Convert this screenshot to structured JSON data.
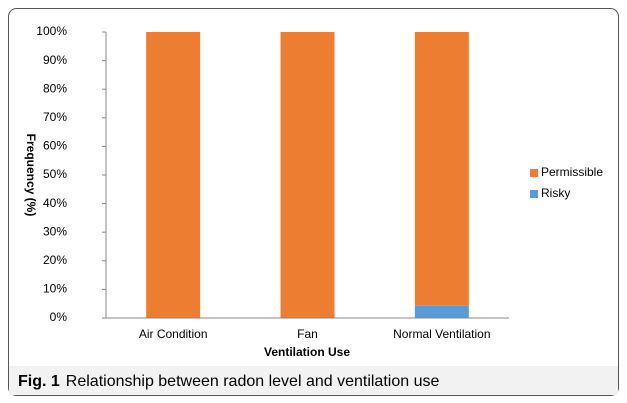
{
  "chart_data": {
    "type": "stacked_bar",
    "categories": [
      "Air Condition",
      "Fan",
      "Normal Ventilation"
    ],
    "series": [
      {
        "name": "Permissible",
        "color": "#ed7d31",
        "values": [
          100,
          100,
          95.7
        ]
      },
      {
        "name": "Risky",
        "color": "#5b9bd5",
        "values": [
          0,
          0,
          4.3
        ]
      }
    ],
    "ylim": [
      0,
      100
    ],
    "yticks": [
      {
        "value": 0,
        "label": "0%"
      },
      {
        "value": 10,
        "label": "10%"
      },
      {
        "value": 20,
        "label": "20%"
      },
      {
        "value": 30,
        "label": "30%"
      },
      {
        "value": 40,
        "label": "40%"
      },
      {
        "value": 50,
        "label": "50%"
      },
      {
        "value": 60,
        "label": "60%"
      },
      {
        "value": 70,
        "label": "70%"
      },
      {
        "value": 80,
        "label": "80%"
      },
      {
        "value": 90,
        "label": "90%"
      },
      {
        "value": 100,
        "label": "100%"
      }
    ],
    "xlabel": "Ventilation Use",
    "ylabel": "Frequency (%)",
    "legend": "right",
    "grid": false
  },
  "caption_label": "Fig. 1",
  "caption": "Relationship between radon level and ventilation use"
}
